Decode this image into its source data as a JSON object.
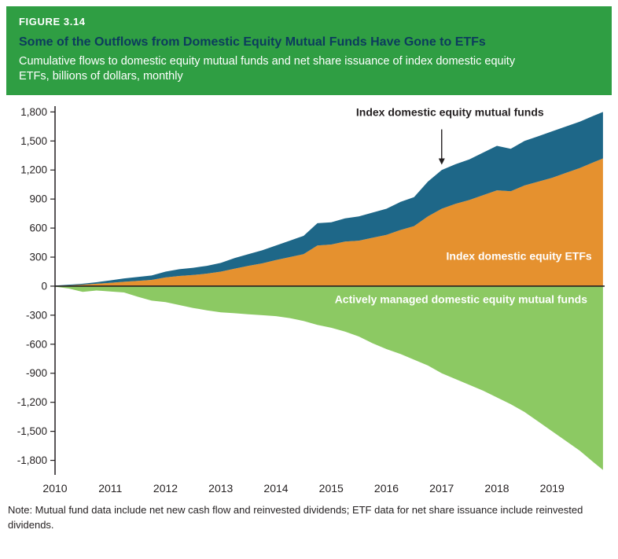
{
  "figure": {
    "label": "FIGURE 3.14",
    "title": "Some of the Outflows from Domestic Equity Mutual Funds Have Gone to ETFs",
    "subtitle": "Cumulative flows to domestic equity mutual funds and net share issuance of index domestic equity ETFs, billions of dollars, monthly"
  },
  "note": "Note: Mutual fund data include net new cash flow and reinvested dividends; ETF data for net share issuance include reinvested dividends.",
  "colors": {
    "header_green": "#2f9e43",
    "title_navy": "#0c3b5d",
    "subtitle_white": "#ffffff",
    "axis_text": "#231f20",
    "note_text": "#231f20",
    "background": "#ffffff"
  },
  "chart_data": {
    "type": "area",
    "stacked": true,
    "title": "",
    "xlabel": "",
    "ylabel": "billions of dollars",
    "grid": false,
    "legend_position": "labels-inside-areas",
    "xlim": [
      2010,
      2019.95
    ],
    "ylim": [
      -1950,
      1860
    ],
    "x": [
      2010,
      2010.25,
      2010.5,
      2010.75,
      2011,
      2011.25,
      2011.5,
      2011.75,
      2012,
      2012.25,
      2012.5,
      2012.75,
      2013,
      2013.25,
      2013.5,
      2013.75,
      2014,
      2014.25,
      2014.5,
      2014.75,
      2015,
      2015.25,
      2015.5,
      2015.75,
      2016,
      2016.25,
      2016.5,
      2016.75,
      2017,
      2017.25,
      2017.5,
      2017.75,
      2018,
      2018.25,
      2018.5,
      2018.75,
      2019,
      2019.25,
      2019.5,
      2019.75,
      2019.92
    ],
    "series": [
      {
        "name": "Index domestic equity ETFs",
        "color": "#e5912f",
        "values": [
          3,
          8,
          15,
          25,
          35,
          45,
          55,
          65,
          90,
          105,
          115,
          130,
          150,
          180,
          210,
          235,
          270,
          300,
          330,
          420,
          430,
          460,
          470,
          500,
          530,
          580,
          620,
          720,
          800,
          850,
          890,
          940,
          990,
          980,
          1040,
          1080,
          1120,
          1170,
          1220,
          1280,
          1320
        ]
      },
      {
        "name": "Index domestic equity mutual funds",
        "color": "#1e6788",
        "stack_on": "Index domestic equity ETFs",
        "values": [
          2,
          7,
          10,
          15,
          25,
          35,
          40,
          45,
          60,
          70,
          75,
          80,
          90,
          110,
          120,
          135,
          150,
          170,
          190,
          230,
          230,
          240,
          250,
          260,
          270,
          290,
          300,
          360,
          400,
          410,
          420,
          440,
          460,
          440,
          460,
          470,
          480,
          480,
          480,
          480,
          480
        ]
      },
      {
        "name": "Actively managed domestic equity mutual funds",
        "color": "#8cc963",
        "values": [
          -5,
          -25,
          -60,
          -45,
          -55,
          -65,
          -110,
          -150,
          -165,
          -195,
          -225,
          -250,
          -270,
          -280,
          -290,
          -300,
          -310,
          -330,
          -360,
          -400,
          -430,
          -470,
          -520,
          -590,
          -650,
          -700,
          -760,
          -820,
          -900,
          -960,
          -1020,
          -1080,
          -1150,
          -1220,
          -1300,
          -1400,
          -1500,
          -1600,
          -1700,
          -1820,
          -1900
        ]
      }
    ],
    "yticks": [
      {
        "v": 1800,
        "label": "1,800"
      },
      {
        "v": 1500,
        "label": "1,500"
      },
      {
        "v": 1200,
        "label": "1,200"
      },
      {
        "v": 900,
        "label": "900"
      },
      {
        "v": 600,
        "label": "600"
      },
      {
        "v": 300,
        "label": "300"
      },
      {
        "v": 0,
        "label": "0"
      },
      {
        "v": -300,
        "label": "-300"
      },
      {
        "v": -600,
        "label": "-600"
      },
      {
        "v": -900,
        "label": "-900"
      },
      {
        "v": -1200,
        "label": "-1,200"
      },
      {
        "v": -1500,
        "label": "-1,500"
      },
      {
        "v": -1800,
        "label": "-1,800"
      }
    ],
    "xticks": [
      {
        "v": 2010,
        "label": "2010"
      },
      {
        "v": 2011,
        "label": "2011"
      },
      {
        "v": 2012,
        "label": "2012"
      },
      {
        "v": 2013,
        "label": "2013"
      },
      {
        "v": 2014,
        "label": "2014"
      },
      {
        "v": 2015,
        "label": "2015"
      },
      {
        "v": 2016,
        "label": "2016"
      },
      {
        "v": 2017,
        "label": "2017"
      },
      {
        "v": 2018,
        "label": "2018"
      },
      {
        "v": 2019,
        "label": "2019"
      }
    ],
    "zero_line": true,
    "annotation": {
      "text": "Index domestic equity mutual funds",
      "text_x": 2017.15,
      "text_y": 1760,
      "arrow_x": 2017.0,
      "arrow_from_y": 1620,
      "arrow_to_y": 1255
    },
    "area_labels": [
      {
        "text": "Index domestic equity ETFs",
        "x": 2018.4,
        "y": 270,
        "color": "#ffffff"
      },
      {
        "text": "Actively managed domestic equity mutual funds",
        "x": 2017.35,
        "y": -175,
        "color": "#ffffff"
      }
    ]
  }
}
